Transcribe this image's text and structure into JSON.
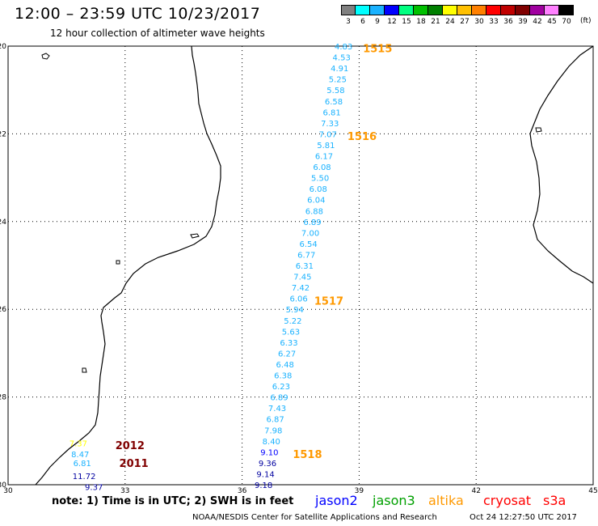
{
  "header": {
    "title": "12:00 – 23:59 UTC 10/23/2017",
    "subtitle": "12 hour collection of altimeter wave heights"
  },
  "scale": {
    "labels": [
      "3",
      "6",
      "9",
      "12",
      "15",
      "18",
      "21",
      "24",
      "27",
      "30",
      "33",
      "36",
      "39",
      "42",
      "45",
      "70"
    ],
    "unit": "(ft)",
    "colors": [
      "#808080",
      "#00ffff",
      "#1ab2ff",
      "#0000ff",
      "#00ff80",
      "#00c000",
      "#008000",
      "#ffff00",
      "#ffc000",
      "#ff8000",
      "#ff0000",
      "#c00000",
      "#800000",
      "#a000a0",
      "#ff80ff",
      "#000000"
    ]
  },
  "map": {
    "lat_ticks": [
      "-20",
      "-22",
      "-24",
      "-26",
      "-28",
      "-30"
    ],
    "lon_ticks": [
      "30",
      "33",
      "36",
      "39",
      "42",
      "45"
    ],
    "coastline": "mainland and Madagascar outlines"
  },
  "readings": [
    {
      "lon": 38.6,
      "lat": -20.0,
      "v": "4.83",
      "c": "#1ab2ff"
    },
    {
      "lon": 38.55,
      "lat": -20.25,
      "v": "4.53",
      "c": "#1ab2ff"
    },
    {
      "lon": 38.5,
      "lat": -20.5,
      "v": "4.91",
      "c": "#1ab2ff"
    },
    {
      "lon": 38.45,
      "lat": -20.75,
      "v": "5.25",
      "c": "#1ab2ff"
    },
    {
      "lon": 38.4,
      "lat": -21.0,
      "v": "5.58",
      "c": "#1ab2ff"
    },
    {
      "lon": 38.35,
      "lat": -21.25,
      "v": "6.58",
      "c": "#1ab2ff"
    },
    {
      "lon": 38.3,
      "lat": -21.5,
      "v": "6.81",
      "c": "#1ab2ff"
    },
    {
      "lon": 38.25,
      "lat": -21.75,
      "v": "7.33",
      "c": "#1ab2ff"
    },
    {
      "lon": 38.2,
      "lat": -22.0,
      "v": "7.07",
      "c": "#1ab2ff"
    },
    {
      "lon": 38.15,
      "lat": -22.25,
      "v": "5.81",
      "c": "#1ab2ff"
    },
    {
      "lon": 38.1,
      "lat": -22.5,
      "v": "6.17",
      "c": "#1ab2ff"
    },
    {
      "lon": 38.05,
      "lat": -22.75,
      "v": "6.08",
      "c": "#1ab2ff"
    },
    {
      "lon": 38.0,
      "lat": -23.0,
      "v": "5.50",
      "c": "#1ab2ff"
    },
    {
      "lon": 37.95,
      "lat": -23.25,
      "v": "6.08",
      "c": "#1ab2ff"
    },
    {
      "lon": 37.9,
      "lat": -23.5,
      "v": "6.04",
      "c": "#1ab2ff"
    },
    {
      "lon": 37.85,
      "lat": -23.75,
      "v": "6.88",
      "c": "#1ab2ff"
    },
    {
      "lon": 37.8,
      "lat": -24.0,
      "v": "6.89",
      "c": "#1ab2ff"
    },
    {
      "lon": 37.75,
      "lat": -24.25,
      "v": "7.00",
      "c": "#1ab2ff"
    },
    {
      "lon": 37.7,
      "lat": -24.5,
      "v": "6.54",
      "c": "#1ab2ff"
    },
    {
      "lon": 37.65,
      "lat": -24.75,
      "v": "6.77",
      "c": "#1ab2ff"
    },
    {
      "lon": 37.6,
      "lat": -25.0,
      "v": "6.31",
      "c": "#1ab2ff"
    },
    {
      "lon": 37.55,
      "lat": -25.25,
      "v": "7.45",
      "c": "#1ab2ff"
    },
    {
      "lon": 37.5,
      "lat": -25.5,
      "v": "7.42",
      "c": "#1ab2ff"
    },
    {
      "lon": 37.45,
      "lat": -25.75,
      "v": "6.06",
      "c": "#1ab2ff"
    },
    {
      "lon": 37.35,
      "lat": -26.0,
      "v": "5.94",
      "c": "#1ab2ff"
    },
    {
      "lon": 37.3,
      "lat": -26.25,
      "v": "5.22",
      "c": "#1ab2ff"
    },
    {
      "lon": 37.25,
      "lat": -26.5,
      "v": "5.63",
      "c": "#1ab2ff"
    },
    {
      "lon": 37.2,
      "lat": -26.75,
      "v": "6.33",
      "c": "#1ab2ff"
    },
    {
      "lon": 37.15,
      "lat": -27.0,
      "v": "6.27",
      "c": "#1ab2ff"
    },
    {
      "lon": 37.1,
      "lat": -27.25,
      "v": "6.48",
      "c": "#1ab2ff"
    },
    {
      "lon": 37.05,
      "lat": -27.5,
      "v": "6.38",
      "c": "#1ab2ff"
    },
    {
      "lon": 37.0,
      "lat": -27.75,
      "v": "6.23",
      "c": "#1ab2ff"
    },
    {
      "lon": 36.95,
      "lat": -28.0,
      "v": "6.89",
      "c": "#1ab2ff"
    },
    {
      "lon": 36.9,
      "lat": -28.25,
      "v": "7.43",
      "c": "#1ab2ff"
    },
    {
      "lon": 36.85,
      "lat": -28.5,
      "v": "6.87",
      "c": "#1ab2ff"
    },
    {
      "lon": 36.8,
      "lat": -28.75,
      "v": "7.98",
      "c": "#1ab2ff"
    },
    {
      "lon": 36.75,
      "lat": -29.0,
      "v": "8.40",
      "c": "#1ab2ff"
    },
    {
      "lon": 36.7,
      "lat": -29.25,
      "v": "9.10",
      "c": "#0000ff"
    },
    {
      "lon": 36.65,
      "lat": -29.5,
      "v": "9.36",
      "c": "#0000a0"
    },
    {
      "lon": 36.6,
      "lat": -29.75,
      "v": "9.14",
      "c": "#0000a0"
    },
    {
      "lon": 36.55,
      "lat": -30.0,
      "v": "9.18",
      "c": "#0000a0"
    },
    {
      "lon": 31.8,
      "lat": -29.05,
      "v": "7.37",
      "c": "#ffff00"
    },
    {
      "lon": 31.85,
      "lat": -29.3,
      "v": "8.47",
      "c": "#1ab2ff"
    },
    {
      "lon": 31.9,
      "lat": -29.5,
      "v": "6.81",
      "c": "#1ab2ff"
    },
    {
      "lon": 31.95,
      "lat": -29.8,
      "v": "11.72",
      "c": "#0000a0"
    },
    {
      "lon": 32.2,
      "lat": -30.05,
      "v": "9.37",
      "c": "#0000a0"
    }
  ],
  "time_labels": [
    {
      "lon": 39.1,
      "lat": -20.05,
      "t": "1515",
      "c": "#ff9900"
    },
    {
      "lon": 38.7,
      "lat": -22.05,
      "t": "1516",
      "c": "#ff9900"
    },
    {
      "lon": 37.85,
      "lat": -25.8,
      "t": "1517",
      "c": "#ff9900"
    },
    {
      "lon": 37.3,
      "lat": -29.3,
      "t": "1518",
      "c": "#ff9900"
    },
    {
      "lon": 32.75,
      "lat": -29.1,
      "t": "2012",
      "c": "#800000"
    },
    {
      "lon": 32.85,
      "lat": -29.5,
      "t": "2011",
      "c": "#800000"
    }
  ],
  "note": "note:  1) Time is in UTC;  2) SWH is in feet",
  "legend": [
    {
      "name": "jason2",
      "color": "#0000ff"
    },
    {
      "name": "jason3",
      "color": "#00a000"
    },
    {
      "name": "altika",
      "color": "#ff9900"
    },
    {
      "name": "cryosat",
      "color": "#ff0000"
    },
    {
      "name": "s3a",
      "color": "#ff0000"
    }
  ],
  "footer": {
    "credit": "NOAA/NESDIS Center for Satellite Applications and Research",
    "timestamp": "Oct 24 12:27:50 UTC 2017"
  }
}
